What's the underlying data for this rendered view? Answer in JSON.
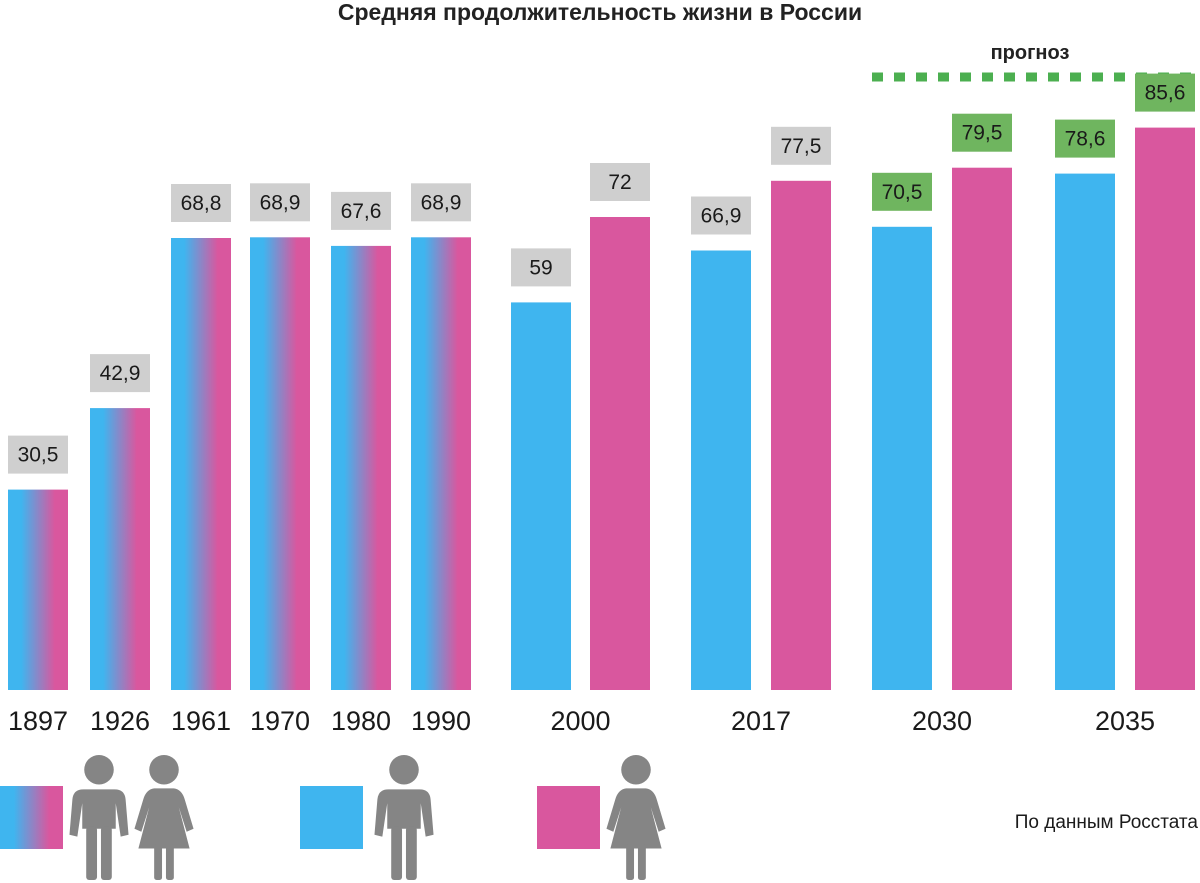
{
  "chart_data": {
    "type": "bar",
    "title": "Средняя продолжительность жизни в России",
    "forecast_label": "прогноз",
    "source": "По данным Росстата",
    "groups": [
      {
        "year": "1897",
        "bars": [
          {
            "kind": "both",
            "value": 30.5,
            "label": "30,5"
          }
        ]
      },
      {
        "year": "1926",
        "bars": [
          {
            "kind": "both",
            "value": 42.9,
            "label": "42,9"
          }
        ]
      },
      {
        "year": "1961",
        "bars": [
          {
            "kind": "both",
            "value": 68.8,
            "label": "68,8"
          }
        ]
      },
      {
        "year": "1970",
        "bars": [
          {
            "kind": "both",
            "value": 68.9,
            "label": "68,9"
          }
        ]
      },
      {
        "year": "1980",
        "bars": [
          {
            "kind": "both",
            "value": 67.6,
            "label": "67,6"
          }
        ]
      },
      {
        "year": "1990",
        "bars": [
          {
            "kind": "both",
            "value": 68.9,
            "label": "68,9"
          }
        ]
      },
      {
        "year": "2000",
        "bars": [
          {
            "kind": "men",
            "value": 59,
            "label": "59"
          },
          {
            "kind": "women",
            "value": 72,
            "label": "72"
          }
        ]
      },
      {
        "year": "2017",
        "bars": [
          {
            "kind": "men",
            "value": 66.9,
            "label": "66,9"
          },
          {
            "kind": "women",
            "value": 77.5,
            "label": "77,5"
          }
        ]
      },
      {
        "year": "2030",
        "forecast": true,
        "bars": [
          {
            "kind": "men",
            "value": 70.5,
            "label": "70,5"
          },
          {
            "kind": "women",
            "value": 79.5,
            "label": "79,5"
          }
        ]
      },
      {
        "year": "2035",
        "forecast": true,
        "bars": [
          {
            "kind": "men",
            "value": 78.6,
            "label": "78,6"
          },
          {
            "kind": "women",
            "value": 85.6,
            "label": "85,6"
          }
        ]
      }
    ],
    "legend": [
      {
        "kind": "both",
        "icon": "man-and-woman-icon"
      },
      {
        "kind": "men",
        "icon": "man-icon"
      },
      {
        "kind": "women",
        "icon": "woman-icon"
      }
    ],
    "colors": {
      "men": "#3fb5ef",
      "women": "#d9579e",
      "label_box": "#cfcfcf",
      "forecast_box": "#6fb55f",
      "forecast_line": "#4caf50",
      "person": "#858585"
    }
  }
}
